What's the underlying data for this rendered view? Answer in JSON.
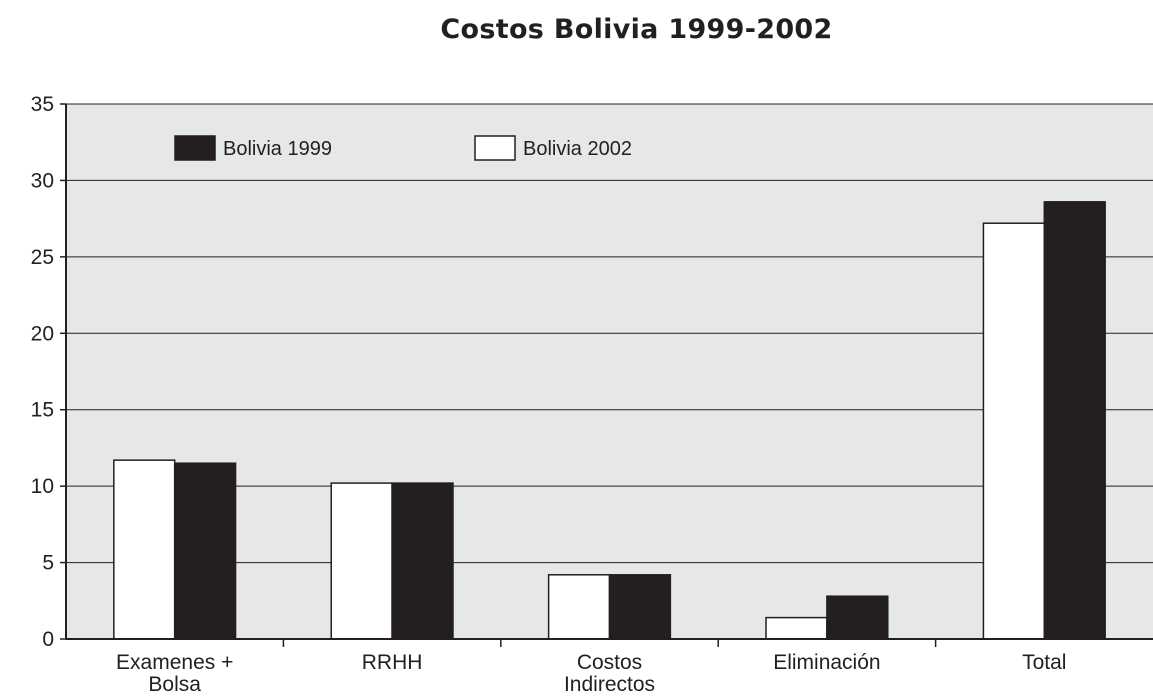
{
  "chart_data": {
    "type": "bar",
    "title": "Costos Bolivia 1999-2002",
    "xlabel": "",
    "ylabel": "",
    "ylim": [
      0,
      35
    ],
    "yticks": [
      0,
      5,
      10,
      15,
      20,
      25,
      30,
      35
    ],
    "grid": true,
    "legend_position": "top-left",
    "categories": [
      [
        "Examenes +",
        "Bolsa"
      ],
      [
        "RRHH"
      ],
      [
        "Costos",
        "Indirectos"
      ],
      [
        "Eliminación"
      ],
      [
        "Total"
      ]
    ],
    "series": [
      {
        "name": "Bolivia 2002",
        "color": "#ffffff",
        "values": [
          11.7,
          10.2,
          4.2,
          1.4,
          27.2
        ]
      },
      {
        "name": "Bolivia 1999",
        "color": "#231f20",
        "values": [
          11.5,
          10.2,
          4.2,
          2.8,
          28.6
        ]
      }
    ],
    "legend_order": [
      1,
      0
    ],
    "colors": {
      "plot_background": "#e6e7e8",
      "axis": "#231f20",
      "grid": "#231f20"
    }
  }
}
